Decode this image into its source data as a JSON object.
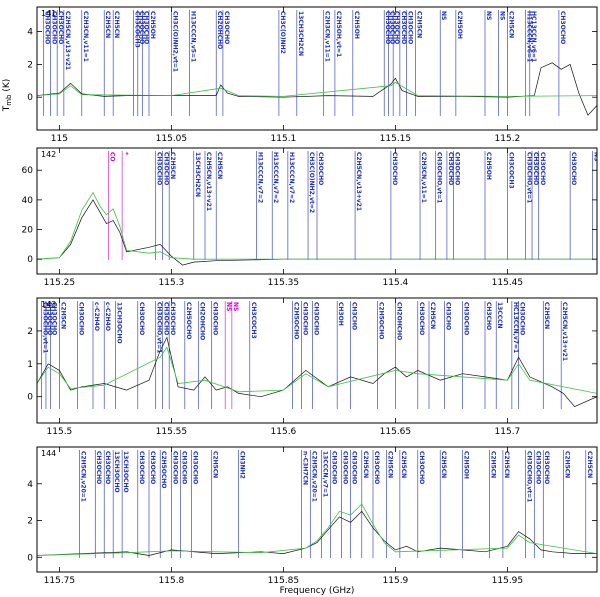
{
  "figure": {
    "xlabel": "Frequency (GHz)",
    "ylabel_text": "T",
    "ylabel_sub": "mb",
    "ylabel_unit": " (K)"
  },
  "colors": {
    "observed": "#111111",
    "model": "#3ec43e",
    "marker": "#1f2fbf",
    "marker_alt": "#d400d4"
  },
  "chart_data": [
    {
      "type": "line",
      "panel": "141",
      "xlim": [
        114.99,
        115.24
      ],
      "ylim": [
        -2.0,
        5.5
      ],
      "xticks": [
        115,
        115.05,
        115.1,
        115.15,
        115.2
      ],
      "yticks": [
        0,
        2,
        4
      ],
      "series": [
        {
          "role": "observed",
          "x": [
            114.99,
            115.0,
            115.005,
            115.01,
            115.02,
            115.03,
            115.05,
            115.07,
            115.072,
            115.075,
            115.08,
            115.1,
            115.12,
            115.14,
            115.148,
            115.15,
            115.153,
            115.16,
            115.18,
            115.2,
            115.212,
            115.215,
            115.22,
            115.224,
            115.228,
            115.232,
            115.236,
            115.24
          ],
          "y": [
            0.1,
            0.25,
            0.85,
            0.2,
            0.05,
            0.1,
            0.1,
            0.1,
            0.75,
            0.25,
            0.05,
            0.0,
            0.1,
            0.05,
            0.8,
            1.15,
            0.4,
            0.05,
            0.05,
            0.0,
            0.1,
            1.8,
            2.1,
            1.7,
            2.0,
            0.2,
            -1.1,
            -0.5
          ]
        },
        {
          "role": "model",
          "x": [
            114.99,
            115.0,
            115.005,
            115.01,
            115.05,
            115.072,
            115.08,
            115.1,
            115.148,
            115.15,
            115.16,
            115.2,
            115.24
          ],
          "y": [
            0.1,
            0.2,
            0.7,
            0.15,
            0.1,
            0.55,
            0.1,
            0.05,
            0.7,
            0.9,
            0.1,
            0.05,
            0.1
          ]
        }
      ],
      "markers": [
        {
          "x": 114.993,
          "label": "CH3OCHO"
        },
        {
          "x": 114.996,
          "label": "CH3OCHO"
        },
        {
          "x": 114.999,
          "label": "CH3OCHO"
        },
        {
          "x": 115.002,
          "label": "C2H5CN,v13+v21"
        },
        {
          "x": 115.01,
          "label": "C2H3CN,v11=1"
        },
        {
          "x": 115.02,
          "label": "C2H5CN"
        },
        {
          "x": 115.024,
          "label": "C2H5CN"
        },
        {
          "x": 115.033,
          "label": "CH3COCH3"
        },
        {
          "x": 115.035,
          "label": "CH3OCHO"
        },
        {
          "x": 115.037,
          "label": "CH3OCHO"
        },
        {
          "x": 115.04,
          "label": "C2H5OH"
        },
        {
          "x": 115.05,
          "label": "CH3C(O)NH2,vt=1"
        },
        {
          "x": 115.058,
          "label": "H13CCCN,v5=1"
        },
        {
          "x": 115.07,
          "label": "CH2OHCHO"
        },
        {
          "x": 115.073,
          "label": "CH3OCHO"
        },
        {
          "x": 115.098,
          "label": "CH3C(O)NH2"
        },
        {
          "x": 115.106,
          "label": "13CH3CH2CN"
        },
        {
          "x": 115.118,
          "label": "C2H3CN,v11=1"
        },
        {
          "x": 115.123,
          "label": "C2H5OH,vt=1"
        },
        {
          "x": 115.131,
          "label": "C2H5OH"
        },
        {
          "x": 115.145,
          "label": "CH3OCHO"
        },
        {
          "x": 115.147,
          "label": "CH3OCHO"
        },
        {
          "x": 115.149,
          "label": "CH3OCHO"
        },
        {
          "x": 115.152,
          "label": "CH3OCHO"
        },
        {
          "x": 115.155,
          "label": "CH3OCHO"
        },
        {
          "x": 115.159,
          "label": "C2H5CN"
        },
        {
          "x": 115.17,
          "label": "NS"
        },
        {
          "x": 115.177,
          "label": "C2H5OH"
        },
        {
          "x": 115.19,
          "label": "NS"
        },
        {
          "x": 115.196,
          "label": "NS"
        },
        {
          "x": 115.2,
          "label": "C2H5CN"
        },
        {
          "x": 115.208,
          "label": "H13CCCN,v6=1"
        },
        {
          "x": 115.21,
          "label": "HC13CCN,v6=1"
        },
        {
          "x": 115.223,
          "label": "CH3OCHO"
        }
      ]
    },
    {
      "type": "line",
      "panel": "142",
      "xlim": [
        115.24,
        115.49
      ],
      "ylim": [
        -10,
        75
      ],
      "xticks": [
        115.25,
        115.3,
        115.35,
        115.4,
        115.45
      ],
      "yticks": [
        0,
        20,
        40,
        60
      ],
      "series": [
        {
          "role": "observed",
          "x": [
            115.24,
            115.25,
            115.255,
            115.26,
            115.265,
            115.268,
            115.271,
            115.274,
            115.277,
            115.28,
            115.29,
            115.295,
            115.3,
            115.305,
            115.31,
            115.32,
            115.35,
            115.4,
            115.45,
            115.49
          ],
          "y": [
            0.0,
            1.0,
            10.0,
            28.0,
            40.0,
            32.0,
            24.0,
            26.0,
            18.0,
            5.0,
            8.0,
            10.0,
            2.0,
            -4.0,
            -2.0,
            -1.0,
            0.0,
            0.0,
            0.0,
            0.0
          ]
        },
        {
          "role": "model",
          "x": [
            115.24,
            115.25,
            115.255,
            115.26,
            115.265,
            115.268,
            115.271,
            115.274,
            115.277,
            115.28,
            115.29,
            115.295,
            115.3,
            115.31,
            115.35,
            115.4,
            115.49
          ],
          "y": [
            0.0,
            1.0,
            12.0,
            33.0,
            45.0,
            36.0,
            30.0,
            34.0,
            22.0,
            6.0,
            4.0,
            5.0,
            1.0,
            0.0,
            0.0,
            0.0,
            0.0
          ]
        }
      ],
      "markers": [
        {
          "x": 115.272,
          "label": "CO",
          "alt": true
        },
        {
          "x": 115.278,
          "label": "*",
          "alt": true
        },
        {
          "x": 115.293,
          "label": "CH3OCHO"
        },
        {
          "x": 115.296,
          "label": "CH3OCHO"
        },
        {
          "x": 115.299,
          "label": "C2H5CN"
        },
        {
          "x": 115.31,
          "label": "13CH3CH2CN"
        },
        {
          "x": 115.315,
          "label": "C2H5CN,v13+v21"
        },
        {
          "x": 115.32,
          "label": "C2H5CN"
        },
        {
          "x": 115.338,
          "label": "H13CCCN,v7=2"
        },
        {
          "x": 115.345,
          "label": "H13CCCN,v7=2"
        },
        {
          "x": 115.352,
          "label": "H13CCCN,v7=2"
        },
        {
          "x": 115.361,
          "label": "CH3C(O)NH2,vt=2"
        },
        {
          "x": 115.365,
          "label": "CH3OCHO"
        },
        {
          "x": 115.382,
          "label": "C2H5CN,v13+v21"
        },
        {
          "x": 115.398,
          "label": "CH3OCHO"
        },
        {
          "x": 115.411,
          "label": "C2H3CN,v11=1"
        },
        {
          "x": 115.418,
          "label": "CH3OCHO,vt=1"
        },
        {
          "x": 115.423,
          "label": "CH3OCHO"
        },
        {
          "x": 115.426,
          "label": "CH3OCHO"
        },
        {
          "x": 115.44,
          "label": "C2H5OH"
        },
        {
          "x": 115.45,
          "label": "CH3COCH3"
        },
        {
          "x": 115.458,
          "label": "CH3OCHO,vt=1"
        },
        {
          "x": 115.461,
          "label": "CH3OCHO"
        },
        {
          "x": 115.464,
          "label": "CH3OCHO"
        },
        {
          "x": 115.478,
          "label": "CH3OCHO"
        },
        {
          "x": 115.488,
          "label": "NS"
        }
      ]
    },
    {
      "type": "line",
      "panel": "143",
      "xlim": [
        115.49,
        115.74
      ],
      "ylim": [
        -0.8,
        3.0
      ],
      "xticks": [
        115.5,
        115.55,
        115.6,
        115.65,
        115.7
      ],
      "yticks": [
        0,
        1,
        2
      ],
      "series": [
        {
          "role": "observed",
          "x": [
            115.49,
            115.495,
            115.5,
            115.505,
            115.51,
            115.52,
            115.53,
            115.54,
            115.545,
            115.548,
            115.55,
            115.553,
            115.56,
            115.565,
            115.57,
            115.575,
            115.58,
            115.59,
            115.6,
            115.61,
            115.62,
            115.63,
            115.64,
            115.645,
            115.65,
            115.655,
            115.66,
            115.67,
            115.68,
            115.69,
            115.7,
            115.705,
            115.71,
            115.72,
            115.725,
            115.73,
            115.74
          ],
          "y": [
            0.4,
            1.0,
            0.8,
            0.2,
            0.3,
            0.4,
            0.2,
            0.5,
            1.4,
            1.8,
            1.2,
            0.3,
            0.2,
            0.6,
            0.2,
            0.3,
            0.1,
            0.0,
            0.2,
            0.8,
            0.3,
            0.6,
            0.4,
            0.7,
            0.9,
            0.6,
            0.8,
            0.5,
            0.7,
            0.6,
            0.5,
            1.2,
            0.6,
            0.3,
            0.1,
            -0.3,
            0.0
          ]
        },
        {
          "role": "model",
          "x": [
            115.49,
            115.495,
            115.5,
            115.505,
            115.52,
            115.545,
            115.548,
            115.553,
            115.565,
            115.58,
            115.6,
            115.61,
            115.62,
            115.65,
            115.66,
            115.7,
            115.705,
            115.71,
            115.74
          ],
          "y": [
            0.4,
            0.9,
            0.7,
            0.25,
            0.35,
            1.2,
            1.5,
            0.4,
            0.5,
            0.15,
            0.2,
            0.7,
            0.3,
            0.8,
            0.7,
            0.5,
            1.0,
            0.5,
            0.1
          ]
        }
      ],
      "markers": [
        {
          "x": 115.492,
          "label": "CH3OCHO,vt=1"
        },
        {
          "x": 115.494,
          "label": "CH3OCHO"
        },
        {
          "x": 115.496,
          "label": "CH3OCHO"
        },
        {
          "x": 115.5,
          "label": "C2H5CN"
        },
        {
          "x": 115.508,
          "label": "CH3OCHO"
        },
        {
          "x": 115.515,
          "label": "c-C2H4O"
        },
        {
          "x": 115.52,
          "label": "c-C2H4O"
        },
        {
          "x": 115.525,
          "label": "13CH3OCHO"
        },
        {
          "x": 115.535,
          "label": "CH3OCHO"
        },
        {
          "x": 115.543,
          "label": "CH3OCHO,vt=1"
        },
        {
          "x": 115.546,
          "label": "CH3OCHO"
        },
        {
          "x": 115.549,
          "label": "CH3OCHO"
        },
        {
          "x": 115.556,
          "label": "C2H5OCHO"
        },
        {
          "x": 115.562,
          "label": "CH2OHCHO"
        },
        {
          "x": 115.568,
          "label": "CH3OCHO"
        },
        {
          "x": 115.574,
          "label": "NS",
          "alt": true
        },
        {
          "x": 115.577,
          "label": "NS",
          "alt": true
        },
        {
          "x": 115.585,
          "label": "CH3COCH3"
        },
        {
          "x": 115.604,
          "label": "C2H5OCHO"
        },
        {
          "x": 115.608,
          "label": "CH3OCHO"
        },
        {
          "x": 115.613,
          "label": "CH3OCHO"
        },
        {
          "x": 115.624,
          "label": "CH3OH"
        },
        {
          "x": 115.63,
          "label": "CH3CHO"
        },
        {
          "x": 115.642,
          "label": "C2H5OCHO"
        },
        {
          "x": 115.65,
          "label": "CH2OHCHO"
        },
        {
          "x": 115.66,
          "label": "CH3OCHO"
        },
        {
          "x": 115.665,
          "label": "C2H5CN"
        },
        {
          "x": 115.672,
          "label": "CH3CHO"
        },
        {
          "x": 115.68,
          "label": "CH3OCHO"
        },
        {
          "x": 115.69,
          "label": "CH3CHO"
        },
        {
          "x": 115.695,
          "label": "13CCCN"
        },
        {
          "x": 115.702,
          "label": "HC13CCN,v7=1"
        },
        {
          "x": 115.705,
          "label": "CH3OCHO"
        },
        {
          "x": 115.716,
          "label": "C2H5CN"
        },
        {
          "x": 115.724,
          "label": "C2H5CN,v13+v21"
        }
      ]
    },
    {
      "type": "line",
      "panel": "144",
      "xlim": [
        115.74,
        115.99
      ],
      "ylim": [
        -0.8,
        6.0
      ],
      "xticks": [
        115.75,
        115.8,
        115.85,
        115.9,
        115.95
      ],
      "yticks": [
        0,
        2,
        4
      ],
      "series": [
        {
          "role": "observed",
          "x": [
            115.74,
            115.76,
            115.78,
            115.79,
            115.8,
            115.82,
            115.84,
            115.85,
            115.86,
            115.865,
            115.87,
            115.875,
            115.88,
            115.885,
            115.89,
            115.895,
            115.9,
            115.905,
            115.91,
            115.92,
            115.93,
            115.94,
            115.95,
            115.955,
            115.96,
            115.965,
            115.97,
            115.98,
            115.99
          ],
          "y": [
            0.1,
            0.2,
            0.3,
            0.1,
            0.4,
            0.2,
            0.3,
            0.2,
            0.5,
            0.8,
            1.5,
            2.2,
            1.9,
            2.5,
            1.6,
            0.9,
            0.4,
            0.6,
            0.3,
            0.5,
            0.4,
            0.3,
            0.6,
            1.4,
            1.0,
            0.4,
            0.3,
            0.2,
            0.2
          ]
        },
        {
          "role": "model",
          "x": [
            115.74,
            115.78,
            115.8,
            115.84,
            115.86,
            115.865,
            115.87,
            115.875,
            115.88,
            115.885,
            115.89,
            115.895,
            115.9,
            115.95,
            115.955,
            115.96,
            115.99
          ],
          "y": [
            0.1,
            0.25,
            0.35,
            0.25,
            0.5,
            0.9,
            1.6,
            2.5,
            2.3,
            2.9,
            1.8,
            0.8,
            0.3,
            0.5,
            1.2,
            0.8,
            0.2
          ]
        }
      ],
      "markers": [
        {
          "x": 115.759,
          "label": "C2H5CN,v20=1"
        },
        {
          "x": 115.766,
          "label": "CH3OCHO"
        },
        {
          "x": 115.77,
          "label": "CH3OCHO"
        },
        {
          "x": 115.774,
          "label": "13CH3OCHO"
        },
        {
          "x": 115.778,
          "label": "13CH3OCHO"
        },
        {
          "x": 115.785,
          "label": "CH3OCHO"
        },
        {
          "x": 115.79,
          "label": "CH3OCHO"
        },
        {
          "x": 115.795,
          "label": "C2H5OCHO"
        },
        {
          "x": 115.8,
          "label": "CH3OCHO"
        },
        {
          "x": 115.804,
          "label": "CH3OCHO"
        },
        {
          "x": 115.809,
          "label": "CH3OCHO"
        },
        {
          "x": 115.818,
          "label": "C2H5CN"
        },
        {
          "x": 115.83,
          "label": "CH3NH2"
        },
        {
          "x": 115.858,
          "label": "n-C3H7CN"
        },
        {
          "x": 115.862,
          "label": "C2H5CN,v20=1"
        },
        {
          "x": 115.867,
          "label": "13CCCN,v7=1"
        },
        {
          "x": 115.871,
          "label": "CH3OCHO"
        },
        {
          "x": 115.876,
          "label": "CH3OCHO"
        },
        {
          "x": 115.88,
          "label": "CH3OCHO"
        },
        {
          "x": 115.885,
          "label": "C2H5CN"
        },
        {
          "x": 115.89,
          "label": "CH3OCHO"
        },
        {
          "x": 115.896,
          "label": "C2H5CN"
        },
        {
          "x": 115.902,
          "label": "C2H5CN"
        },
        {
          "x": 115.91,
          "label": "CH3OCHO"
        },
        {
          "x": 115.92,
          "label": "C2H5CN"
        },
        {
          "x": 115.93,
          "label": "C2H5OH"
        },
        {
          "x": 115.942,
          "label": "C2H5CN"
        },
        {
          "x": 115.948,
          "label": "C2H5CN"
        },
        {
          "x": 115.958,
          "label": "CH3OCHO,vt=1"
        },
        {
          "x": 115.962,
          "label": "CH3OCHO"
        },
        {
          "x": 115.966,
          "label": "CH3OCHO"
        },
        {
          "x": 115.975,
          "label": "C2H5CN"
        },
        {
          "x": 115.985,
          "label": "C2H5CN"
        }
      ]
    }
  ]
}
